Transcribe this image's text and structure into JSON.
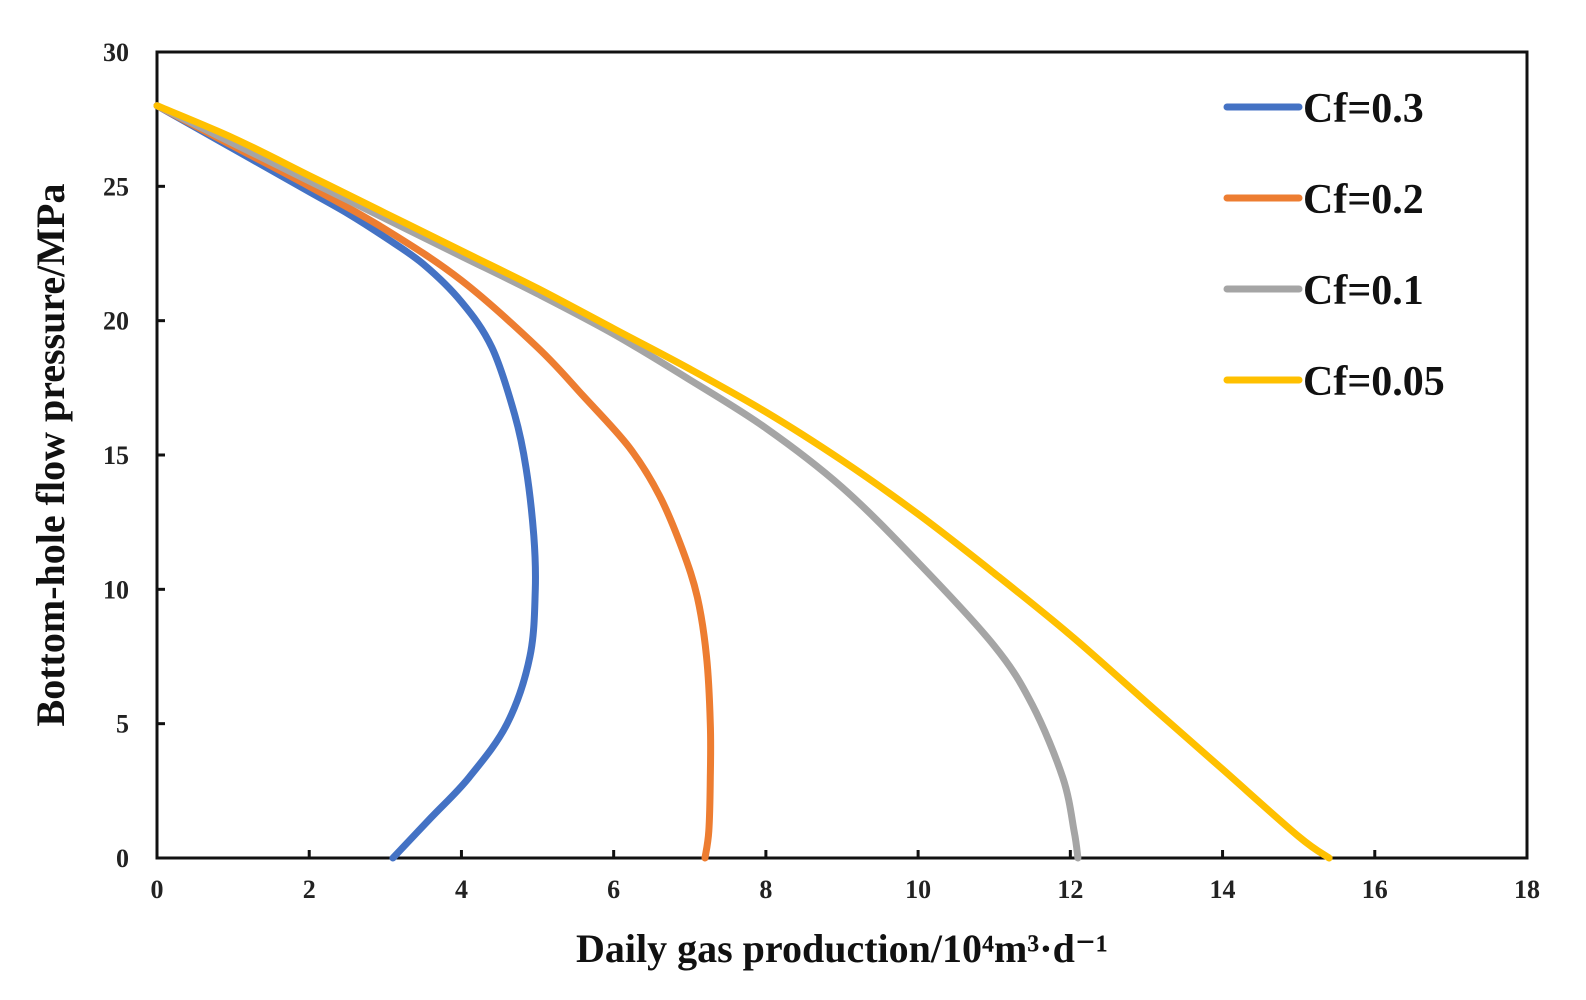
{
  "chart_data": {
    "type": "line",
    "title": "",
    "xlabel": "Daily gas production/10⁴m³·d⁻¹",
    "ylabel": "Bottom-hole flow pressure/MPa",
    "xlim": [
      0,
      18
    ],
    "ylim": [
      0,
      30
    ],
    "xticks": [
      0,
      2,
      4,
      6,
      8,
      10,
      12,
      14,
      16,
      18
    ],
    "yticks": [
      0,
      5,
      10,
      15,
      20,
      25,
      30
    ],
    "grid": false,
    "legend_position": "top-right",
    "series": [
      {
        "name": "Cf=0.3",
        "color": "#4472C4",
        "points": [
          [
            0,
            28
          ],
          [
            0.5,
            27.2
          ],
          [
            1.0,
            26.4
          ],
          [
            1.5,
            25.6
          ],
          [
            2.0,
            24.8
          ],
          [
            2.5,
            24.0
          ],
          [
            3.0,
            23.1
          ],
          [
            3.5,
            22.1
          ],
          [
            4.0,
            20.7
          ],
          [
            4.4,
            19.0
          ],
          [
            4.7,
            16.5
          ],
          [
            4.85,
            14.5
          ],
          [
            4.95,
            12
          ],
          [
            4.97,
            10
          ],
          [
            4.9,
            7.5
          ],
          [
            4.6,
            5
          ],
          [
            4.1,
            3
          ],
          [
            3.6,
            1.5
          ],
          [
            3.1,
            0
          ]
        ]
      },
      {
        "name": "Cf=0.2",
        "color": "#ED7D31",
        "points": [
          [
            0,
            28
          ],
          [
            1,
            26.5
          ],
          [
            2,
            25
          ],
          [
            3,
            23.4
          ],
          [
            4,
            21.5
          ],
          [
            5,
            19.0
          ],
          [
            5.6,
            17.2
          ],
          [
            6.2,
            15.3
          ],
          [
            6.6,
            13.5
          ],
          [
            6.9,
            11.5
          ],
          [
            7.1,
            9.7
          ],
          [
            7.22,
            7.5
          ],
          [
            7.27,
            5
          ],
          [
            7.27,
            3
          ],
          [
            7.25,
            1
          ],
          [
            7.2,
            0
          ]
        ]
      },
      {
        "name": "Cf=0.1",
        "color": "#A5A5A5",
        "points": [
          [
            0,
            28
          ],
          [
            1,
            26.6
          ],
          [
            2,
            25.2
          ],
          [
            3,
            23.8
          ],
          [
            4,
            22.4
          ],
          [
            5,
            21.0
          ],
          [
            6,
            19.5
          ],
          [
            7,
            17.8
          ],
          [
            8,
            16.0
          ],
          [
            9,
            13.8
          ],
          [
            10,
            11.0
          ],
          [
            11,
            7.9
          ],
          [
            11.5,
            5.7
          ],
          [
            11.9,
            3
          ],
          [
            12.05,
            1
          ],
          [
            12.1,
            0
          ]
        ]
      },
      {
        "name": "Cf=0.05",
        "color": "#FFC000",
        "points": [
          [
            0,
            28
          ],
          [
            1,
            26.8
          ],
          [
            2,
            25.4
          ],
          [
            3,
            24.0
          ],
          [
            4,
            22.6
          ],
          [
            5,
            21.2
          ],
          [
            6,
            19.7
          ],
          [
            7,
            18.2
          ],
          [
            8,
            16.6
          ],
          [
            9,
            14.8
          ],
          [
            10,
            12.8
          ],
          [
            11,
            10.6
          ],
          [
            12,
            8.3
          ],
          [
            13,
            5.8
          ],
          [
            14,
            3.3
          ],
          [
            15,
            0.8
          ],
          [
            15.4,
            0
          ]
        ]
      }
    ]
  }
}
